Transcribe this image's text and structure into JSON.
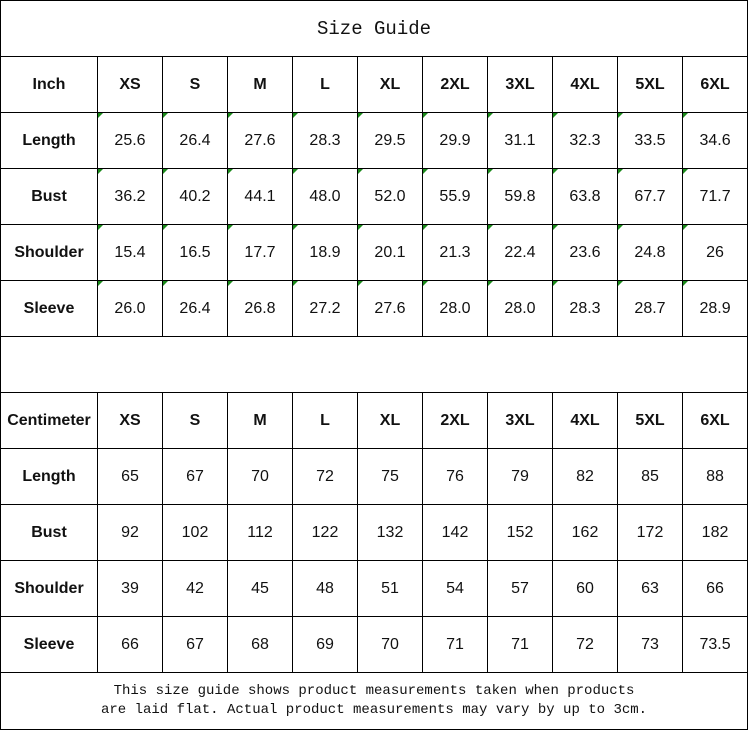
{
  "title": "Size Guide",
  "sizes": [
    "XS",
    "S",
    "M",
    "L",
    "XL",
    "2XL",
    "3XL",
    "4XL",
    "5XL",
    "6XL"
  ],
  "tables": [
    {
      "unit": "Inch",
      "rows": [
        {
          "label": "Length",
          "values": [
            "25.6",
            "26.4",
            "27.6",
            "28.3",
            "29.5",
            "29.9",
            "31.1",
            "32.3",
            "33.5",
            "34.6"
          ]
        },
        {
          "label": "Bust",
          "values": [
            "36.2",
            "40.2",
            "44.1",
            "48.0",
            "52.0",
            "55.9",
            "59.8",
            "63.8",
            "67.7",
            "71.7"
          ]
        },
        {
          "label": "Shoulder",
          "values": [
            "15.4",
            "16.5",
            "17.7",
            "18.9",
            "20.1",
            "21.3",
            "22.4",
            "23.6",
            "24.8",
            "26"
          ]
        },
        {
          "label": "Sleeve",
          "values": [
            "26.0",
            "26.4",
            "26.8",
            "27.2",
            "27.6",
            "28.0",
            "28.0",
            "28.3",
            "28.7",
            "28.9"
          ]
        }
      ]
    },
    {
      "unit": "Centimeter",
      "rows": [
        {
          "label": "Length",
          "values": [
            "65",
            "67",
            "70",
            "72",
            "75",
            "76",
            "79",
            "82",
            "85",
            "88"
          ]
        },
        {
          "label": "Bust",
          "values": [
            "92",
            "102",
            "112",
            "122",
            "132",
            "142",
            "152",
            "162",
            "172",
            "182"
          ]
        },
        {
          "label": "Shoulder",
          "values": [
            "39",
            "42",
            "45",
            "48",
            "51",
            "54",
            "57",
            "60",
            "63",
            "66"
          ]
        },
        {
          "label": "Sleeve",
          "values": [
            "66",
            "67",
            "68",
            "69",
            "70",
            "71",
            "71",
            "72",
            "73",
            "73.5"
          ]
        }
      ]
    }
  ],
  "note_line1": "This size guide shows product measurements taken when products",
  "note_line2": "are laid flat. Actual product measurements may vary by up to 3cm.",
  "colors": {
    "error_flag": "#1a8a1a",
    "border": "#000000"
  }
}
